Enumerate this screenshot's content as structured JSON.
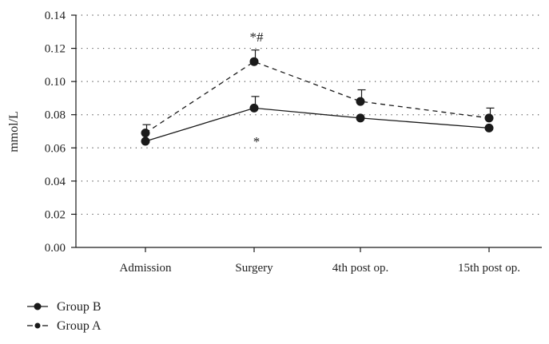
{
  "chart_data": {
    "type": "line",
    "title": "",
    "xlabel": "",
    "ylabel": "mmol/L",
    "categories": [
      "Admission",
      "Surgery",
      "4th post op.",
      "15th post op."
    ],
    "ylim": [
      0,
      0.14
    ],
    "yticks": [
      0.0,
      0.02,
      0.04,
      0.06,
      0.08,
      0.1,
      0.12,
      0.14
    ],
    "ytick_labels": [
      "0.00",
      "0.02",
      "0.04",
      "0.06",
      "0.08",
      "0.10",
      "0.12",
      "0.14"
    ],
    "grid": "dotted horizontal",
    "legend_position": "bottom-left",
    "series": [
      {
        "name": "Group B",
        "line_style": "solid",
        "values": [
          0.064,
          0.084,
          0.078,
          0.072
        ],
        "errors": [
          0,
          0.007,
          0,
          0
        ]
      },
      {
        "name": "Group A",
        "line_style": "dashed",
        "values": [
          0.069,
          0.112,
          0.088,
          0.078
        ],
        "errors": [
          0.005,
          0.007,
          0.007,
          0.006
        ]
      }
    ],
    "annotations": [
      {
        "text": "*#",
        "category": "Surgery",
        "y": 0.127
      },
      {
        "text": "*",
        "category": "Surgery",
        "y": 0.064
      }
    ],
    "colors": {
      "line": "#1a1a1a",
      "grid": "#555555",
      "background": "#ffffff"
    }
  }
}
